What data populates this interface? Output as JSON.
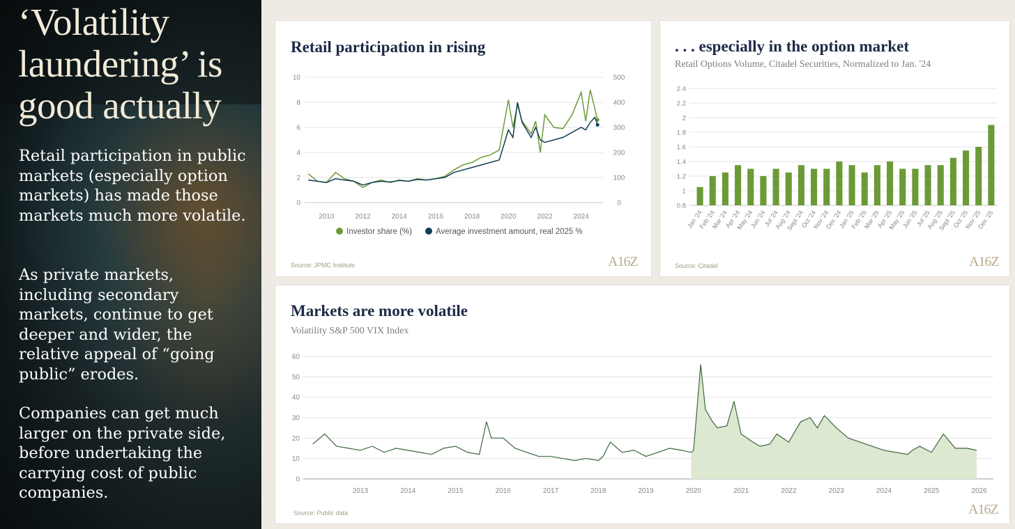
{
  "left": {
    "title": "‘Volatility laundering’ is good actually",
    "paragraphs": [
      "Retail participation in public markets (especially option markets) has made those markets much more volatile.",
      "As private markets, including secondary markets, continue to get deeper and wider, the relative appeal of “going public” erodes.",
      "Companies can get much larger on the private side, before undertaking the carrying cost of public companies."
    ]
  },
  "logo": "A16Z",
  "colors": {
    "green": "#6b9a37",
    "navy": "#123c55",
    "title": "#1d2a47",
    "area": "#dde8d1",
    "vix_line": "#3d6640",
    "grid": "#e3e3e3"
  },
  "chart_data": [
    {
      "type": "line",
      "title": "Retail participation in rising",
      "source": "Source: JPMC Institute",
      "x": [
        2009.0,
        2009.5,
        2010.0,
        2010.5,
        2011.0,
        2011.5,
        2012.0,
        2012.5,
        2013.0,
        2013.5,
        2014.0,
        2014.5,
        2015.0,
        2015.5,
        2016.0,
        2016.5,
        2017.0,
        2017.5,
        2018.0,
        2018.5,
        2019.0,
        2019.5,
        2020.0,
        2020.25,
        2020.5,
        2020.75,
        2021.0,
        2021.25,
        2021.5,
        2021.75,
        2022.0,
        2022.5,
        2023.0,
        2023.5,
        2024.0,
        2024.25,
        2024.5,
        2024.75,
        2024.9
      ],
      "xticks": [
        "2010",
        "2012",
        "2014",
        "2016",
        "2018",
        "2020",
        "2022",
        "2024"
      ],
      "xtick_values": [
        2010,
        2012,
        2014,
        2016,
        2018,
        2020,
        2022,
        2024
      ],
      "xlim": [
        2008.8,
        2025.2
      ],
      "series": [
        {
          "name": "Investor share (%)",
          "axis": "left",
          "values": [
            2.3,
            1.7,
            1.6,
            2.4,
            1.9,
            1.7,
            1.2,
            1.6,
            1.8,
            1.6,
            1.8,
            1.7,
            1.9,
            1.8,
            1.9,
            2.1,
            2.6,
            3.0,
            3.2,
            3.6,
            3.8,
            4.2,
            8.2,
            6.0,
            7.8,
            6.5,
            6.0,
            5.5,
            6.5,
            4.0,
            7.0,
            6.0,
            5.9,
            7.0,
            8.8,
            6.5,
            9.0,
            7.5,
            6.6
          ]
        },
        {
          "name": "Average investment amount, real 2025 %",
          "axis": "right",
          "values": [
            90,
            85,
            80,
            95,
            90,
            85,
            70,
            80,
            85,
            82,
            88,
            85,
            92,
            90,
            95,
            100,
            120,
            130,
            140,
            150,
            160,
            170,
            290,
            260,
            400,
            320,
            290,
            260,
            300,
            250,
            240,
            250,
            260,
            280,
            300,
            290,
            320,
            340,
            310
          ]
        }
      ],
      "ylim_left": [
        0,
        10
      ],
      "yticks_left": [
        "0",
        "2",
        "4",
        "6",
        "8",
        "10"
      ],
      "ylim_right": [
        0,
        500
      ],
      "yticks_right": [
        "0",
        "100",
        "200",
        "300",
        "400",
        "500"
      ]
    },
    {
      "type": "bar",
      "title": ". . . especially in the option market",
      "subtitle": "Retail Options Volume, Citadel Securities, Normalized to Jan. '24",
      "source": "Source: Citadel",
      "categories": [
        "Jan '24",
        "Feb '24",
        "Mar '24",
        "Apr '24",
        "May '24",
        "Jun '24",
        "Jul '24",
        "Aug '24",
        "Sept '24",
        "Oct '24",
        "Nov '24",
        "Dec '24",
        "Jan '25",
        "Feb '25",
        "Mar '25",
        "Apr '25",
        "May '25",
        "Jun '25",
        "Jul '25",
        "Aug '25",
        "Sept '25",
        "Oct '25",
        "Nov '25",
        "Dec '25"
      ],
      "values": [
        1.05,
        1.2,
        1.25,
        1.35,
        1.3,
        1.2,
        1.3,
        1.25,
        1.35,
        1.3,
        1.3,
        1.4,
        1.35,
        1.25,
        1.35,
        1.4,
        1.3,
        1.3,
        1.35,
        1.35,
        1.45,
        1.55,
        1.6,
        1.9
      ],
      "ylim": [
        0.8,
        2.4
      ],
      "yticks": [
        "0.8",
        "1",
        "1.2",
        "1.4",
        "1.6",
        "1.8",
        "2",
        "2.2",
        "2.4"
      ]
    },
    {
      "type": "area",
      "title": "Markets are more volatile",
      "subtitle": "Volatility S&P 500 VIX Index",
      "source": "Source: Public data",
      "x": [
        2012.0,
        2012.25,
        2012.5,
        2012.75,
        2013.0,
        2013.25,
        2013.5,
        2013.75,
        2014.0,
        2014.25,
        2014.5,
        2014.75,
        2015.0,
        2015.25,
        2015.5,
        2015.65,
        2015.75,
        2016.0,
        2016.25,
        2016.5,
        2016.75,
        2017.0,
        2017.25,
        2017.5,
        2017.75,
        2018.0,
        2018.1,
        2018.25,
        2018.5,
        2018.75,
        2019.0,
        2019.25,
        2019.5,
        2019.75,
        2019.95,
        2020.0,
        2020.15,
        2020.25,
        2020.4,
        2020.5,
        2020.7,
        2020.85,
        2021.0,
        2021.25,
        2021.4,
        2021.6,
        2021.75,
        2022.0,
        2022.25,
        2022.45,
        2022.6,
        2022.75,
        2023.0,
        2023.25,
        2023.5,
        2023.75,
        2024.0,
        2024.25,
        2024.5,
        2024.6,
        2024.75,
        2025.0,
        2025.25,
        2025.5,
        2025.75,
        2025.95
      ],
      "values": [
        17,
        22,
        16,
        15,
        14,
        16,
        13,
        15,
        14,
        13,
        12,
        15,
        16,
        13,
        12,
        28,
        20,
        20,
        15,
        13,
        11,
        11,
        10,
        9,
        10,
        9,
        11,
        18,
        13,
        14,
        11,
        13,
        15,
        14,
        13,
        14,
        56,
        34,
        28,
        25,
        26,
        38,
        22,
        18,
        16,
        17,
        22,
        18,
        28,
        30,
        25,
        31,
        25,
        20,
        18,
        16,
        14,
        13,
        12,
        14,
        16,
        13,
        22,
        15,
        15,
        14
      ],
      "shade_from": 2019.95,
      "xticks": [
        "2013",
        "2014",
        "2015",
        "2016",
        "2017",
        "2018",
        "2019",
        "2020",
        "2021",
        "2022",
        "2023",
        "2024",
        "2025",
        "2026"
      ],
      "xtick_values": [
        2013,
        2014,
        2015,
        2016,
        2017,
        2018,
        2019,
        2020,
        2021,
        2022,
        2023,
        2024,
        2025,
        2026
      ],
      "xlim": [
        2011.8,
        2026.3
      ],
      "ylim": [
        0,
        60
      ],
      "yticks": [
        "0",
        "10",
        "20",
        "30",
        "40",
        "50",
        "60"
      ]
    }
  ]
}
